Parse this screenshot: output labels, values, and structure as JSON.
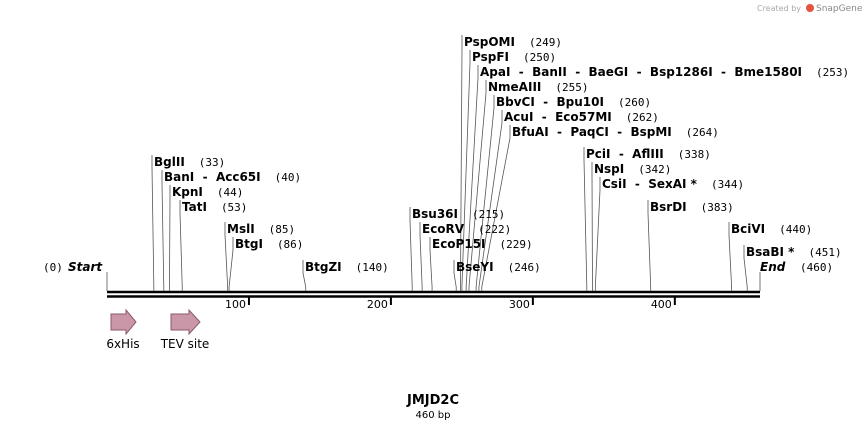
{
  "header": {
    "credit": "Created by",
    "brand": "SnapGene"
  },
  "map": {
    "start": {
      "label": "Start",
      "position": {
        "value": 0,
        "label": "(0)"
      }
    },
    "end": {
      "label": "End",
      "position": {
        "value": 460,
        "label": "(460)"
      }
    },
    "ticks": [
      100,
      200,
      300,
      400
    ],
    "sites": [
      {
        "name": "PspOMI",
        "position": {
          "value": 249,
          "label": "(249)"
        }
      },
      {
        "name": "PspFI",
        "position": {
          "value": 250,
          "label": "(250)"
        }
      },
      {
        "name": "ApaI  -  BanII  -  BaeGI  -  Bsp1286I  -  Bme1580I",
        "position": {
          "value": 253,
          "label": "(253)"
        }
      },
      {
        "name": "NmeAIII",
        "position": {
          "value": 255,
          "label": "(255)"
        }
      },
      {
        "name": "BbvCI  -  Bpu10I",
        "position": {
          "value": 260,
          "label": "(260)"
        }
      },
      {
        "name": "AcuI  -  Eco57MI",
        "position": {
          "value": 262,
          "label": "(262)"
        }
      },
      {
        "name": "BfuAI  -  PaqCI  -  BspMI",
        "position": {
          "value": 264,
          "label": "(264)"
        }
      },
      {
        "name": "PciI  -  AflIII",
        "position": {
          "value": 338,
          "label": "(338)"
        }
      },
      {
        "name": "NspI",
        "position": {
          "value": 342,
          "label": "(342)"
        }
      },
      {
        "name": "CsiI  -  SexAI *",
        "position": {
          "value": 344,
          "label": "(344)"
        }
      },
      {
        "name": "BsrDI",
        "position": {
          "value": 383,
          "label": "(383)"
        }
      },
      {
        "name": "BciVI",
        "position": {
          "value": 440,
          "label": "(440)"
        }
      },
      {
        "name": "BsaBI *",
        "position": {
          "value": 451,
          "label": "(451)"
        }
      },
      {
        "name": "BglII",
        "position": {
          "value": 33,
          "label": "(33)"
        }
      },
      {
        "name": "BanI  -  Acc65I",
        "position": {
          "value": 40,
          "label": "(40)"
        }
      },
      {
        "name": "KpnI",
        "position": {
          "value": 44,
          "label": "(44)"
        }
      },
      {
        "name": "TatI",
        "position": {
          "value": 53,
          "label": "(53)"
        }
      },
      {
        "name": "MslI",
        "position": {
          "value": 85,
          "label": "(85)"
        }
      },
      {
        "name": "BtgI",
        "position": {
          "value": 86,
          "label": "(86)"
        }
      },
      {
        "name": "BtgZI",
        "position": {
          "value": 140,
          "label": "(140)"
        }
      },
      {
        "name": "Bsu36I",
        "position": {
          "value": 215,
          "label": "(215)"
        }
      },
      {
        "name": "EcoRV",
        "position": {
          "value": 222,
          "label": "(222)"
        }
      },
      {
        "name": "EcoP15I",
        "position": {
          "value": 229,
          "label": "(229)"
        }
      },
      {
        "name": "BseYI",
        "position": {
          "value": 246,
          "label": "(246)"
        }
      }
    ],
    "features": [
      {
        "name": "6xHis"
      },
      {
        "name": "TEV site"
      }
    ],
    "title": "JMJD2C",
    "length": "460 bp"
  }
}
